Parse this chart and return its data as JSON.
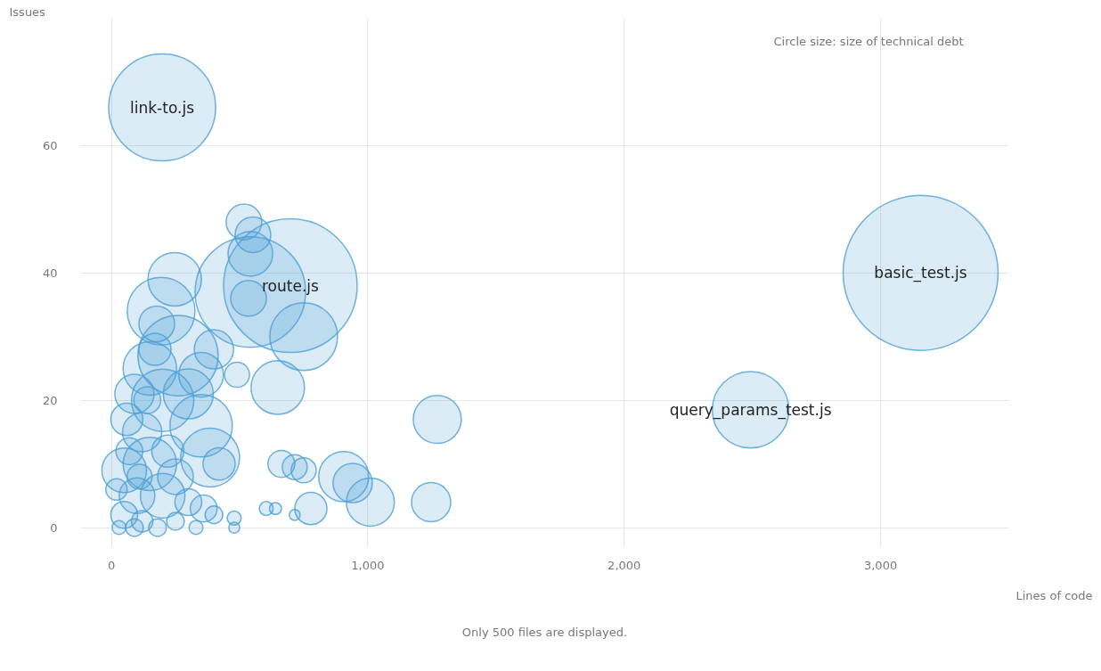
{
  "chart_data": {
    "type": "bubble",
    "xlabel": "Lines of code",
    "ylabel": "Issues",
    "legend_title": "Circle size: size of technical debt",
    "xlim": [
      -120,
      3500
    ],
    "ylim": [
      -3,
      80
    ],
    "xticks": [
      0,
      {
        "value": 1000,
        "label": "1,000"
      },
      {
        "value": 2000,
        "label": "2,000"
      },
      {
        "value": 3000,
        "label": "3,000"
      }
    ],
    "yticks": [
      0,
      20,
      40,
      60
    ],
    "grid": true,
    "marker": "circle",
    "series": [
      {
        "color": "#4b9fd5",
        "x": [
          198,
          3156,
          2493,
          698,
          542,
          517,
          552,
          542,
          535,
          750,
          247,
          194,
          177,
          649,
          490,
          400,
          260,
          150,
          350,
          90,
          200,
          300,
          350,
          385,
          420,
          60,
          120,
          50,
          150,
          100,
          200,
          250,
          300,
          50,
          120,
          180,
          250,
          330,
          360,
          400,
          30,
          70,
          20,
          90,
          663,
          715,
          750,
          778,
          604,
          640,
          715,
          906,
          941,
          1010,
          1271,
          1247,
          479,
          479,
          140,
          220,
          170,
          110
        ],
        "values": [
          66,
          40,
          18.5,
          38,
          37,
          48,
          46,
          43,
          36,
          30,
          39,
          34,
          32,
          22,
          24,
          28,
          27,
          25,
          24,
          21,
          20,
          21,
          16,
          11,
          10,
          17,
          15,
          9,
          10,
          5,
          5,
          8,
          4,
          2,
          1,
          0,
          1,
          0,
          3,
          2,
          0,
          12,
          6,
          0,
          10,
          9.5,
          9,
          3,
          3,
          3,
          2,
          8,
          7,
          4,
          17,
          4,
          1.5,
          0,
          20,
          12,
          28,
          8
        ],
        "sizes": [
          0.476,
          1,
          0.244,
          0.743,
          0.508,
          0.053,
          0.053,
          0.083,
          0.053,
          0.191,
          0.119,
          0.191,
          0.053,
          0.119,
          0.026,
          0.064,
          0.268,
          0.119,
          0.083,
          0.064,
          0.162,
          0.104,
          0.162,
          0.144,
          0.043,
          0.043,
          0.064,
          0.083,
          0.119,
          0.053,
          0.083,
          0.053,
          0.03,
          0.03,
          0.019,
          0.013,
          0.013,
          0.008,
          0.03,
          0.013,
          0.008,
          0.03,
          0.019,
          0.013,
          0.03,
          0.026,
          0.026,
          0.043,
          0.008,
          0.006,
          0.005,
          0.104,
          0.064,
          0.096,
          0.096,
          0.064,
          0.008,
          0.005,
          0.03,
          0.043,
          0.043,
          0.026
        ]
      }
    ],
    "annotations": [
      {
        "text": "link-to.js",
        "x": 198,
        "y": 66
      },
      {
        "text": "basic_test.js",
        "x": 3156,
        "y": 40
      },
      {
        "text": "query_params_test.js",
        "x": 2493,
        "y": 18.5
      },
      {
        "text": "route.js",
        "x": 698,
        "y": 38
      },
      "Only 500 files are displayed."
    ]
  }
}
